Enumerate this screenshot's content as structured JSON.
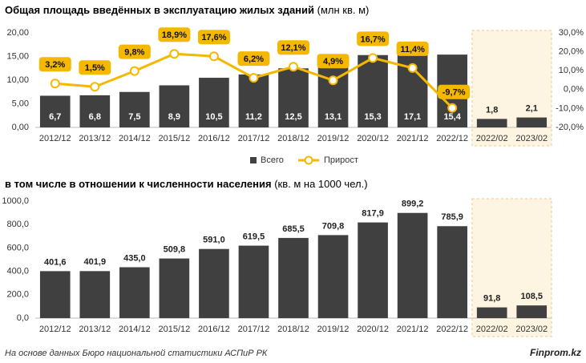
{
  "chart_data": [
    {
      "type": "bar",
      "title": "Общая площадь введённых в эксплуатацию жилых зданий",
      "title_unit": "(млн кв. м)",
      "categories": [
        "2012/12",
        "2013/12",
        "2014/12",
        "2015/12",
        "2016/12",
        "2017/12",
        "2018/12",
        "2019/12",
        "2020/12",
        "2021/12",
        "2022/12",
        "2022/02",
        "2023/02"
      ],
      "series": [
        {
          "name": "Всего",
          "color": "#404040",
          "values": [
            6.7,
            6.8,
            7.5,
            8.9,
            10.5,
            11.2,
            12.5,
            13.1,
            15.3,
            17.1,
            15.4,
            1.8,
            2.1
          ],
          "value_labels": [
            "6,7",
            "6,8",
            "7,5",
            "8,9",
            "10,5",
            "11,2",
            "12,5",
            "13,1",
            "15,3",
            "17,1",
            "15,4",
            "1,8",
            "2,1"
          ]
        },
        {
          "name": "Прирост",
          "type": "line",
          "axis": "y2",
          "color": "#f5b800",
          "values": [
            3.2,
            1.5,
            9.8,
            18.9,
            17.6,
            6.2,
            12.1,
            4.9,
            16.7,
            11.4,
            -9.7,
            null,
            null
          ],
          "value_labels": [
            "3,2%",
            "1,5%",
            "9,8%",
            "18,9%",
            "17,6%",
            "6,2%",
            "12,1%",
            "4,9%",
            "16,7%",
            "11,4%",
            "-9,7%",
            null,
            null
          ]
        }
      ],
      "ylim": [
        0,
        20
      ],
      "yticks": [
        {
          "value": 0,
          "label": "0,00"
        },
        {
          "value": 5,
          "label": "5,00"
        },
        {
          "value": 10,
          "label": "10,00"
        },
        {
          "value": 15,
          "label": "15,00"
        },
        {
          "value": 20,
          "label": "20,00"
        }
      ],
      "y2lim": [
        -20,
        30
      ],
      "y2ticks": [
        {
          "value": -20,
          "label": "-20,0%"
        },
        {
          "value": -10,
          "label": "-10,0%"
        },
        {
          "value": 0,
          "label": "0,0%"
        },
        {
          "value": 10,
          "label": "10,0%"
        },
        {
          "value": 20,
          "label": "20,0%"
        },
        {
          "value": 30,
          "label": "30,0%"
        }
      ],
      "shade_from_index": 11,
      "legend": "bottom"
    },
    {
      "type": "bar",
      "title": "в том числе в отношении к численности населения",
      "title_unit": "(кв. м на 1000 чел.)",
      "categories": [
        "2012/12",
        "2013/12",
        "2014/12",
        "2015/12",
        "2016/12",
        "2017/12",
        "2018/12",
        "2019/12",
        "2020/12",
        "2021/12",
        "2022/12",
        "2022/02",
        "2023/02"
      ],
      "series": [
        {
          "color": "#404040",
          "values": [
            401.6,
            401.9,
            435.0,
            509.8,
            591.0,
            619.5,
            685.5,
            709.8,
            817.9,
            899.2,
            785.9,
            91.8,
            108.5
          ],
          "value_labels": [
            "401,6",
            "401,9",
            "435,0",
            "509,8",
            "591,0",
            "619,5",
            "685,5",
            "709,8",
            "817,9",
            "899,2",
            "785,9",
            "91,8",
            "108,5"
          ]
        }
      ],
      "ylim": [
        0,
        1000
      ],
      "yticks": [
        {
          "value": 0,
          "label": "0,0"
        },
        {
          "value": 200,
          "label": "200,0"
        },
        {
          "value": 400,
          "label": "400,0"
        },
        {
          "value": 600,
          "label": "600,0"
        },
        {
          "value": 800,
          "label": "800,0"
        },
        {
          "value": 1000,
          "label": "1000,0"
        }
      ],
      "shade_from_index": 11
    }
  ],
  "footer": {
    "source": "На основе данных Бюро национальной статистики АСПиР РК",
    "brand": "Finprom.kz"
  }
}
